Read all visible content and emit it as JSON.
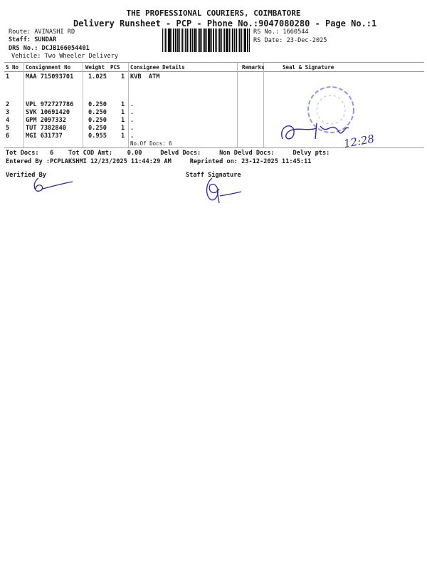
{
  "header": {
    "company": "THE PROFESSIONAL COURIERS, COIMBATORE",
    "subtitle": "Delivery Runsheet - PCP - Phone No.:9047080280 - Page No.:1",
    "route": "Route: AVINASHI RD",
    "staff": "Staff: SUNDAR",
    "drs_no": "DRS No.: DCJB166054401",
    "vehicle": "Vehicle: Two Wheeler Delivery",
    "rs_no": "RS No.: 1660544",
    "rs_date": "RS Date: 23-Dec-2025"
  },
  "table": {
    "columns": [
      "S No",
      "Consignment No",
      "Weight",
      "PCS",
      "Consignee Details",
      "Remarks",
      "Seal & Signature"
    ],
    "rows": [
      {
        "sno": "1",
        "consignment": "MAA 715093701",
        "weight": "1.025",
        "pcs": "1",
        "consignee": "KVB  ATM"
      },
      {
        "sno": "2",
        "consignment": "VPL 972727786",
        "weight": "0.250",
        "pcs": "1",
        "consignee": "."
      },
      {
        "sno": "3",
        "consignment": "SVK 10691420",
        "weight": "0.250",
        "pcs": "1",
        "consignee": "."
      },
      {
        "sno": "4",
        "consignment": "GPM 2097332",
        "weight": "0.250",
        "pcs": "1",
        "consignee": "."
      },
      {
        "sno": "5",
        "consignment": "TUT 7382840",
        "weight": "0.250",
        "pcs": "1",
        "consignee": "."
      },
      {
        "sno": "6",
        "consignment": "MGI 631737",
        "weight": "0.955",
        "pcs": "1",
        "consignee": "."
      }
    ],
    "no_of_docs": "No.Of Docs: 6"
  },
  "summary": {
    "line1": "Tot Docs:   6    Tot COD Amt:    0.00     Delvd Docs:     Non Delvd Docs:     Delvy pts:",
    "line2": "Entered By :PCPLAKSHMI 12/23/2025 11:44:29 AM     Reprinted on: 23-12-2025 11:45:11"
  },
  "footer": {
    "verified_by": "Verified By",
    "staff_signature": "Staff Signature"
  },
  "handwriting": {
    "signature_time": "12:28"
  },
  "colors": {
    "ink": "#1a1a1a",
    "pen": "#2a2a9a",
    "stamp": "#5a5ac8"
  }
}
